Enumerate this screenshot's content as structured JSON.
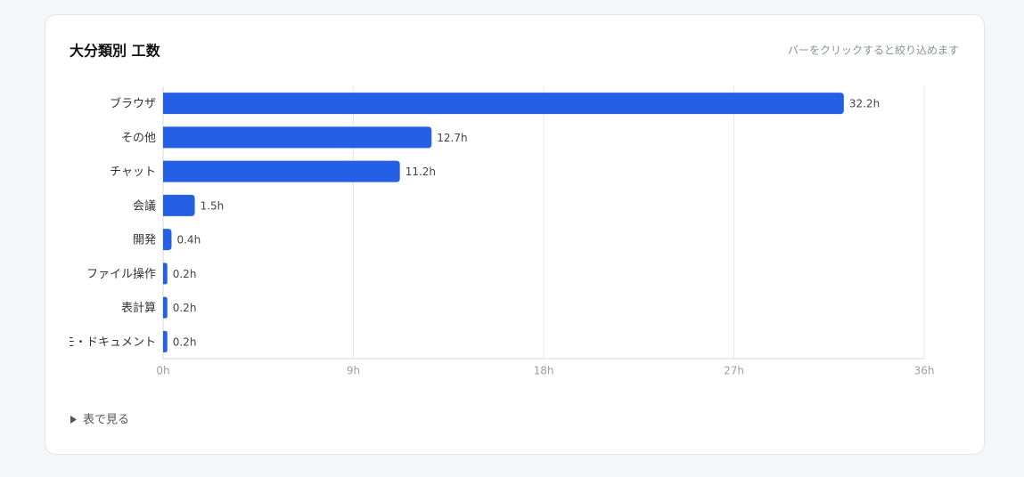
{
  "chart_data": {
    "type": "hbar",
    "title": "大分類別 工数",
    "hint": "バーをクリックすると絞り込めます",
    "categories": [
      "ブラウザ",
      "その他",
      "チャット",
      "会議",
      "開発",
      "ファイル操作",
      "表計算",
      "メモ・ドキュメント"
    ],
    "values": [
      32.2,
      12.7,
      11.2,
      1.5,
      0.4,
      0.2,
      0.2,
      0.2
    ],
    "value_labels": [
      "32.2h",
      "12.7h",
      "11.2h",
      "1.5h",
      "0.4h",
      "0.2h",
      "0.2h",
      "0.2h"
    ],
    "color": "#2360e6",
    "xlim": [
      0,
      36
    ],
    "xticks": [
      {
        "value": 0,
        "label": "0h"
      },
      {
        "value": 9,
        "label": "9h"
      },
      {
        "value": 18,
        "label": "18h"
      },
      {
        "value": 27,
        "label": "27h"
      },
      {
        "value": 36,
        "label": "36h"
      }
    ],
    "grid": true
  },
  "details": {
    "summary": "表で見る"
  }
}
